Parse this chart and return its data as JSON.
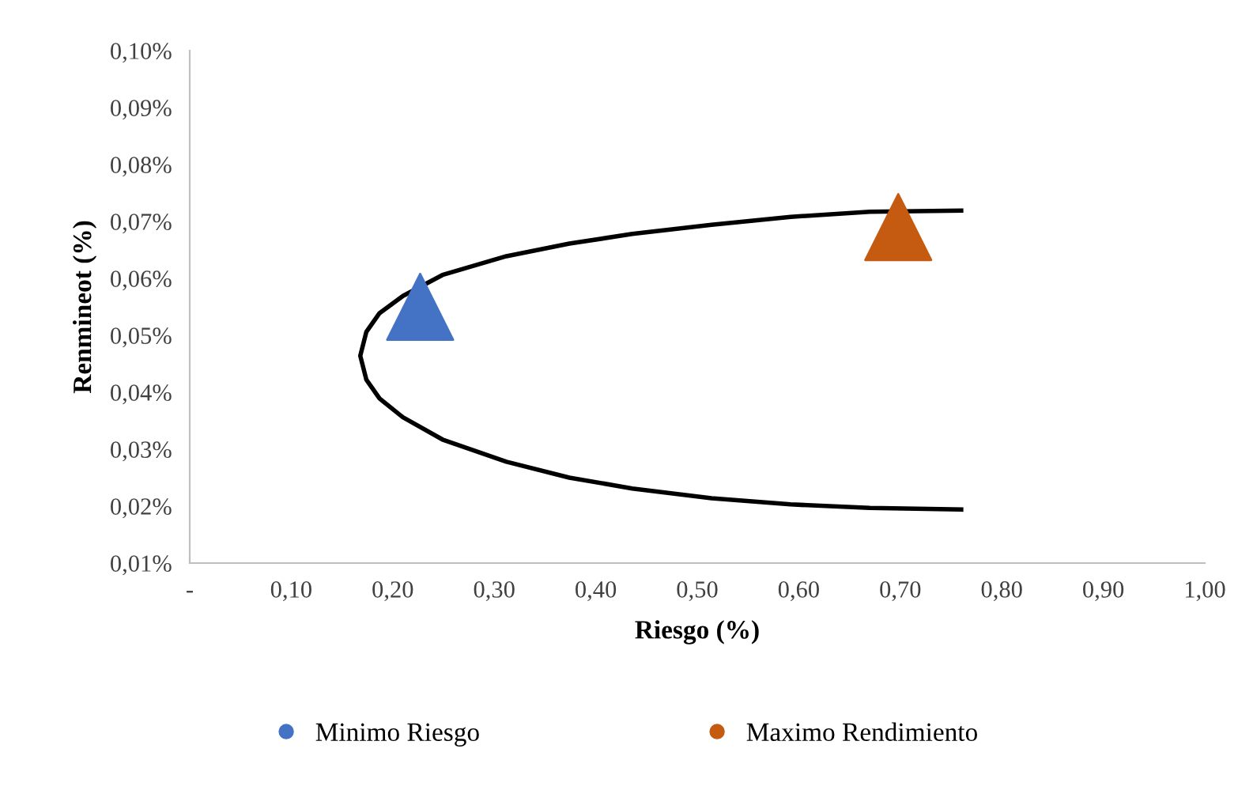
{
  "chart_data": {
    "type": "scatter",
    "xlabel": "Riesgo (%)",
    "ylabel": "Renmineot (%)",
    "xlim": [
      0,
      1
    ],
    "ylim": [
      0.01,
      0.1
    ],
    "xticks": [
      {
        "value": 0,
        "label": "-"
      },
      {
        "value": 0.1,
        "label": "0,10"
      },
      {
        "value": 0.2,
        "label": "0,20"
      },
      {
        "value": 0.3,
        "label": "0,30"
      },
      {
        "value": 0.4,
        "label": "0,40"
      },
      {
        "value": 0.5,
        "label": "0,50"
      },
      {
        "value": 0.6,
        "label": "0,60"
      },
      {
        "value": 0.7,
        "label": "0,70"
      },
      {
        "value": 0.8,
        "label": "0,80"
      },
      {
        "value": 0.9,
        "label": "0,90"
      },
      {
        "value": 1,
        "label": "1,00"
      }
    ],
    "yticks": [
      {
        "value": 0.01,
        "label": "0,01%"
      },
      {
        "value": 0.02,
        "label": "0,02%"
      },
      {
        "value": 0.03,
        "label": "0,03%"
      },
      {
        "value": 0.04,
        "label": "0,04%"
      },
      {
        "value": 0.05,
        "label": "0,05%"
      },
      {
        "value": 0.06,
        "label": "0,06%"
      },
      {
        "value": 0.07,
        "label": "0,07%"
      },
      {
        "value": 0.08,
        "label": "0,08%"
      },
      {
        "value": 0.09,
        "label": "0,09%"
      },
      {
        "value": 0.1,
        "label": "0,10%"
      }
    ],
    "grid": false,
    "legend": "bottom",
    "series": [
      {
        "type": "line",
        "color": "#000000",
        "marker": "none",
        "line_style": "solid",
        "x": [
          0.76,
          0.67,
          0.592,
          0.514,
          0.436,
          0.374,
          0.312,
          0.249,
          0.21,
          0.187,
          0.174,
          0.168,
          0.174,
          0.187,
          0.21,
          0.249,
          0.312,
          0.374,
          0.436,
          0.514,
          0.592,
          0.67,
          0.76
        ],
        "values": [
          0.0194,
          0.0197,
          0.0203,
          0.0214,
          0.0231,
          0.025,
          0.0278,
          0.0317,
          0.0356,
          0.0389,
          0.0422,
          0.0464,
          0.0506,
          0.0539,
          0.0569,
          0.0606,
          0.0639,
          0.0661,
          0.0678,
          0.0694,
          0.0708,
          0.0717,
          0.0719
        ]
      },
      {
        "name": "Minimo Riesgo",
        "color": "#4472c4",
        "marker": "triangle",
        "x": [
          0.227
        ],
        "values": [
          0.055
        ]
      },
      {
        "name": "Maximo Rendimiento",
        "color": "#c55a11",
        "marker": "triangle",
        "x": [
          0.698
        ],
        "values": [
          0.069
        ]
      }
    ]
  }
}
